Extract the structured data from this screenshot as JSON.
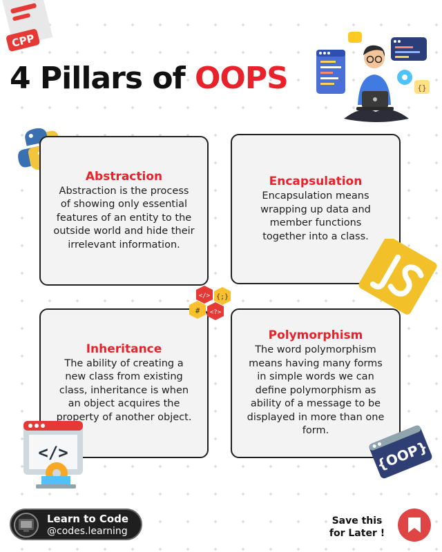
{
  "title": {
    "prefix": "4 Pillars of",
    "accent": "OOPS"
  },
  "badges": {
    "cpp": "CPP",
    "oop": "{OOP}"
  },
  "cards": [
    {
      "heading": "Abstraction",
      "body": "Abstraction is the process of showing only essential features of an entity to the outside world and hide their irrelevant information."
    },
    {
      "heading": "Encapsulation",
      "body": "Encapsulation means wrapping up data and member functions together into a class."
    },
    {
      "heading": "Inheritance",
      "body": "The ability of creating a new class from existing class, inheritance is when an object acquires the property of another object."
    },
    {
      "heading": "Polymorphism",
      "body": "The word polymorphism means having many forms in simple words we can define polymorphism as ability of a message to be displayed in more than one form."
    }
  ],
  "footer": {
    "brand_line1": "Learn to Code",
    "brand_line2": "@codes.learning",
    "save_line1": "Save this",
    "save_line2": "for Later !"
  },
  "colors": {
    "accent": "#e8222a",
    "card_bg": "#f3f3f3",
    "card_border": "#1e1e1e",
    "save_button": "#e04545"
  },
  "icons": [
    "cpp-file-icon",
    "python-logo-icon",
    "js-logo-icon",
    "code-window-icon",
    "oop-tag-icon",
    "code-hexagons-icon",
    "developer-illustration",
    "bookmark-icon"
  ]
}
